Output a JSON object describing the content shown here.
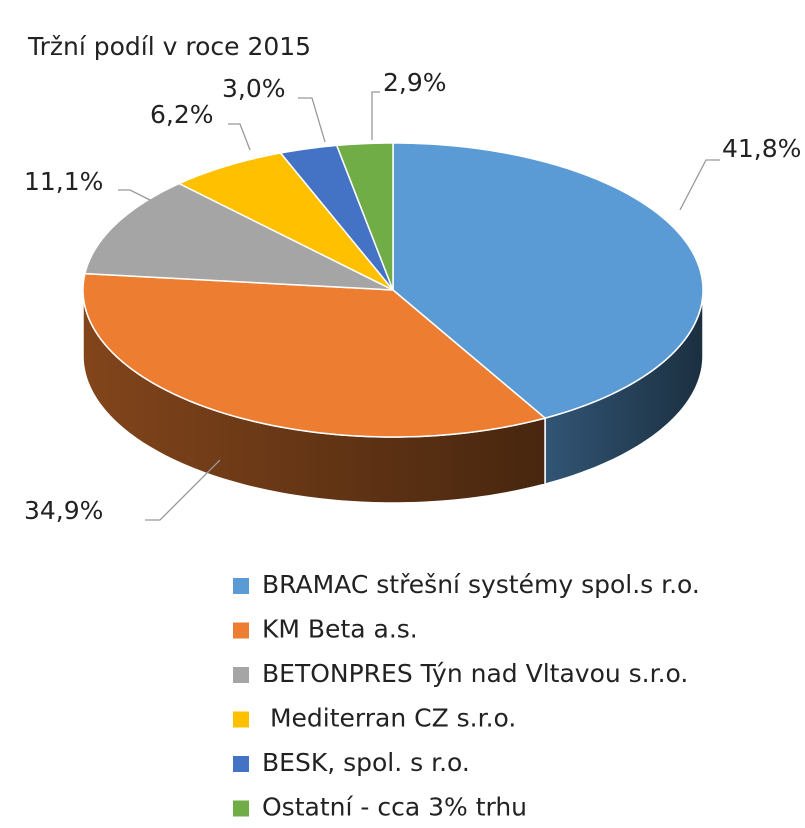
{
  "chart_data": {
    "type": "pie",
    "title": "Tržní podíl v roce 2015",
    "categories": [
      "BRAMAC střešní systémy spol.s r.o.",
      "KM Beta a.s.",
      "BETONPRES Týn nad Vltavou s.r.o.",
      " Mediterran CZ s.r.o.",
      "BESK, spol. s r.o.",
      "Ostatní - cca 3% trhu"
    ],
    "values": [
      41.8,
      34.9,
      11.1,
      6.2,
      3.0,
      2.9
    ],
    "value_labels": [
      "41,8%",
      "34,9%",
      "11,1%",
      "6,2%",
      "3,0%",
      "2,9%"
    ],
    "colors": [
      "#5b9bd5",
      "#ed7d31",
      "#a5a5a5",
      "#ffc000",
      "#4472c4",
      "#70ad47"
    ],
    "legend": "bottom"
  }
}
